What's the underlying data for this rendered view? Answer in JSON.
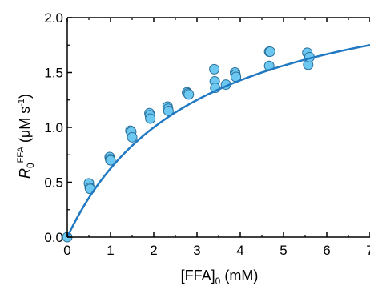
{
  "chart_data": {
    "type": "scatter",
    "title": "",
    "xlabel": {
      "main": "[FFA]",
      "sub": "0",
      "unit": " (mM)"
    },
    "ylabel": {
      "main": "R",
      "sub": "0",
      "sup": "FFA",
      "unit_pre": " (μM s",
      "unit_sup": "-1",
      "unit_post": ")"
    },
    "xlim": [
      0,
      7
    ],
    "ylim": [
      0,
      2.0
    ],
    "x_ticks": [
      "0",
      "1",
      "2",
      "3",
      "4",
      "5",
      "6",
      "7"
    ],
    "y_ticks": [
      "0.0",
      "0.5",
      "1.0",
      "1.5",
      "2.0"
    ],
    "grid": false,
    "legend": "none",
    "colors": {
      "marker_fill": "#6cc8f0",
      "marker_edge": "#2a6f9a",
      "fit_line": "#1f78c1"
    },
    "series": [
      {
        "kind": "points",
        "points": [
          [
            0.0,
            0.0
          ],
          [
            0.5,
            0.49
          ],
          [
            0.52,
            0.45
          ],
          [
            0.53,
            0.44
          ],
          [
            0.98,
            0.73
          ],
          [
            0.99,
            0.71
          ],
          [
            1.0,
            0.7
          ],
          [
            1.46,
            0.97
          ],
          [
            1.48,
            0.96
          ],
          [
            1.5,
            0.91
          ],
          [
            1.9,
            1.13
          ],
          [
            1.91,
            1.11
          ],
          [
            1.92,
            1.08
          ],
          [
            2.32,
            1.19
          ],
          [
            2.33,
            1.17
          ],
          [
            2.34,
            1.15
          ],
          [
            2.77,
            1.32
          ],
          [
            2.79,
            1.31
          ],
          [
            2.81,
            1.3
          ],
          [
            3.4,
            1.53
          ],
          [
            3.41,
            1.42
          ],
          [
            3.42,
            1.36
          ],
          [
            3.67,
            1.39
          ],
          [
            3.88,
            1.5
          ],
          [
            3.89,
            1.48
          ],
          [
            3.9,
            1.46
          ],
          [
            4.67,
            1.69
          ],
          [
            4.69,
            1.69
          ],
          [
            4.67,
            1.56
          ],
          [
            5.55,
            1.68
          ],
          [
            5.57,
            1.57
          ],
          [
            5.6,
            1.64
          ]
        ]
      },
      {
        "kind": "fit",
        "model": "hyperbolic",
        "vmax": 2.5,
        "k": 3.0
      }
    ]
  }
}
